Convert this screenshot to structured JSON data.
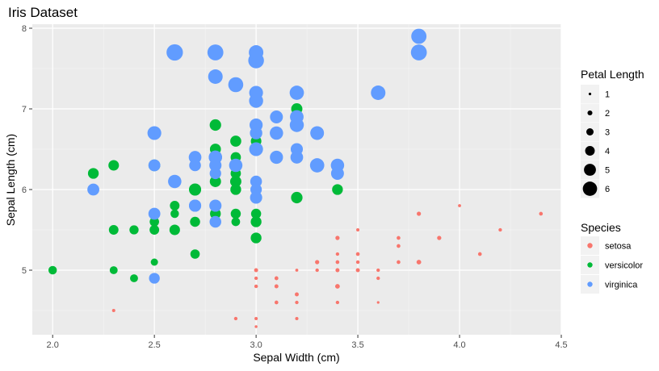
{
  "chart_data": {
    "type": "scatter",
    "title": "Iris Dataset",
    "xlabel": "Sepal Width (cm)",
    "ylabel": "Sepal Length (cm)",
    "xlim": [
      1.9,
      4.5
    ],
    "ylim": [
      4.2,
      8.05
    ],
    "xticks": [
      2.0,
      2.5,
      3.0,
      3.5,
      4.0,
      4.5
    ],
    "xtick_labels": [
      "2.0",
      "2.5",
      "3.0",
      "3.5",
      "4.0",
      "4.5"
    ],
    "yticks": [
      5,
      6,
      7,
      8
    ],
    "ytick_labels": [
      "5",
      "6",
      "7",
      "8"
    ],
    "grid": true,
    "size_legend": {
      "title": "Petal Length",
      "values": [
        1,
        2,
        3,
        4,
        5,
        6
      ],
      "labels": [
        "1",
        "2",
        "3",
        "4",
        "5",
        "6"
      ]
    },
    "color_legend": {
      "title": "Species",
      "placement": "right"
    },
    "series": [
      {
        "name": "setosa",
        "color": "#F8766D",
        "points": [
          [
            3.5,
            5.1,
            1.4
          ],
          [
            3.0,
            4.9,
            1.4
          ],
          [
            3.2,
            4.7,
            1.3
          ],
          [
            3.1,
            4.6,
            1.5
          ],
          [
            3.6,
            5.0,
            1.4
          ],
          [
            3.9,
            5.4,
            1.7
          ],
          [
            3.4,
            4.6,
            1.4
          ],
          [
            3.4,
            5.0,
            1.5
          ],
          [
            2.9,
            4.4,
            1.4
          ],
          [
            3.1,
            4.9,
            1.5
          ],
          [
            3.7,
            5.4,
            1.5
          ],
          [
            3.4,
            4.8,
            1.6
          ],
          [
            3.0,
            4.8,
            1.4
          ],
          [
            3.0,
            4.3,
            1.1
          ],
          [
            4.0,
            5.8,
            1.2
          ],
          [
            4.4,
            5.7,
            1.5
          ],
          [
            3.9,
            5.4,
            1.3
          ],
          [
            3.5,
            5.1,
            1.4
          ],
          [
            3.8,
            5.7,
            1.7
          ],
          [
            3.8,
            5.1,
            1.5
          ],
          [
            3.4,
            5.4,
            1.7
          ],
          [
            3.7,
            5.1,
            1.5
          ],
          [
            3.6,
            4.6,
            1.0
          ],
          [
            3.3,
            5.1,
            1.7
          ],
          [
            3.4,
            4.8,
            1.9
          ],
          [
            3.0,
            5.0,
            1.6
          ],
          [
            3.4,
            5.0,
            1.6
          ],
          [
            3.5,
            5.2,
            1.5
          ],
          [
            3.4,
            5.2,
            1.4
          ],
          [
            3.2,
            4.7,
            1.6
          ],
          [
            3.1,
            4.8,
            1.6
          ],
          [
            3.4,
            5.4,
            1.5
          ],
          [
            4.1,
            5.2,
            1.5
          ],
          [
            4.2,
            5.5,
            1.4
          ],
          [
            3.1,
            4.9,
            1.5
          ],
          [
            3.2,
            5.0,
            1.2
          ],
          [
            3.5,
            5.5,
            1.3
          ],
          [
            3.6,
            4.9,
            1.4
          ],
          [
            3.0,
            4.4,
            1.3
          ],
          [
            3.4,
            5.1,
            1.5
          ],
          [
            3.5,
            5.0,
            1.3
          ],
          [
            2.3,
            4.5,
            1.3
          ],
          [
            3.2,
            4.4,
            1.3
          ],
          [
            3.5,
            5.0,
            1.6
          ],
          [
            3.8,
            5.1,
            1.9
          ],
          [
            3.0,
            4.8,
            1.4
          ],
          [
            3.8,
            5.1,
            1.6
          ],
          [
            3.2,
            4.6,
            1.4
          ],
          [
            3.7,
            5.3,
            1.5
          ],
          [
            3.3,
            5.0,
            1.4
          ]
        ]
      },
      {
        "name": "versicolor",
        "color": "#00BA38",
        "points": [
          [
            3.2,
            7.0,
            4.7
          ],
          [
            3.2,
            6.4,
            4.5
          ],
          [
            3.1,
            6.9,
            4.9
          ],
          [
            2.3,
            5.5,
            4.0
          ],
          [
            2.8,
            6.5,
            4.6
          ],
          [
            2.8,
            5.7,
            4.5
          ],
          [
            3.3,
            6.3,
            4.7
          ],
          [
            2.4,
            4.9,
            3.3
          ],
          [
            2.9,
            6.6,
            4.6
          ],
          [
            2.7,
            5.2,
            3.9
          ],
          [
            2.0,
            5.0,
            3.5
          ],
          [
            3.0,
            5.9,
            4.2
          ],
          [
            2.2,
            6.0,
            4.0
          ],
          [
            2.9,
            6.1,
            4.7
          ],
          [
            2.9,
            5.6,
            3.6
          ],
          [
            3.1,
            6.7,
            4.4
          ],
          [
            3.0,
            5.6,
            4.5
          ],
          [
            2.7,
            5.8,
            4.1
          ],
          [
            2.2,
            6.2,
            4.5
          ],
          [
            2.5,
            5.6,
            3.9
          ],
          [
            3.2,
            5.9,
            4.8
          ],
          [
            2.8,
            6.1,
            4.0
          ],
          [
            2.5,
            6.3,
            4.9
          ],
          [
            2.8,
            6.1,
            4.7
          ],
          [
            2.9,
            6.4,
            4.3
          ],
          [
            3.0,
            6.6,
            4.4
          ],
          [
            2.8,
            6.8,
            4.8
          ],
          [
            3.0,
            6.7,
            5.0
          ],
          [
            2.9,
            6.0,
            4.5
          ],
          [
            2.6,
            5.7,
            3.5
          ],
          [
            2.4,
            5.5,
            3.8
          ],
          [
            2.4,
            5.5,
            3.7
          ],
          [
            2.7,
            5.8,
            3.9
          ],
          [
            2.7,
            6.0,
            5.1
          ],
          [
            3.0,
            5.4,
            4.5
          ],
          [
            3.4,
            6.0,
            4.5
          ],
          [
            3.1,
            6.7,
            4.7
          ],
          [
            2.3,
            6.3,
            4.4
          ],
          [
            3.0,
            5.6,
            4.1
          ],
          [
            2.5,
            5.5,
            4.0
          ],
          [
            2.6,
            5.5,
            4.4
          ],
          [
            3.0,
            6.1,
            4.6
          ],
          [
            2.6,
            5.8,
            4.0
          ],
          [
            2.3,
            5.0,
            3.3
          ],
          [
            2.7,
            5.6,
            4.2
          ],
          [
            3.0,
            5.7,
            4.2
          ],
          [
            2.9,
            5.7,
            4.2
          ],
          [
            2.9,
            6.2,
            4.3
          ],
          [
            2.5,
            5.1,
            3.0
          ],
          [
            2.8,
            5.7,
            4.1
          ]
        ]
      },
      {
        "name": "virginica",
        "color": "#619CFF",
        "points": [
          [
            3.3,
            6.3,
            6.0
          ],
          [
            2.7,
            5.8,
            5.1
          ],
          [
            3.0,
            7.1,
            5.9
          ],
          [
            2.9,
            6.3,
            5.6
          ],
          [
            3.0,
            6.5,
            5.8
          ],
          [
            3.0,
            7.6,
            6.6
          ],
          [
            2.5,
            4.9,
            4.5
          ],
          [
            2.9,
            7.3,
            6.3
          ],
          [
            2.5,
            6.7,
            5.8
          ],
          [
            3.6,
            7.2,
            6.1
          ],
          [
            3.2,
            6.5,
            5.1
          ],
          [
            2.7,
            6.4,
            5.3
          ],
          [
            3.0,
            6.8,
            5.5
          ],
          [
            2.5,
            5.7,
            5.0
          ],
          [
            2.8,
            5.8,
            5.1
          ],
          [
            3.2,
            6.4,
            5.3
          ],
          [
            3.0,
            6.5,
            5.5
          ],
          [
            3.8,
            7.7,
            6.7
          ],
          [
            2.6,
            7.7,
            6.9
          ],
          [
            2.2,
            6.0,
            5.0
          ],
          [
            3.2,
            6.9,
            5.7
          ],
          [
            2.8,
            5.6,
            4.9
          ],
          [
            2.8,
            7.7,
            6.7
          ],
          [
            2.7,
            6.3,
            4.9
          ],
          [
            3.3,
            6.7,
            5.7
          ],
          [
            3.2,
            7.2,
            6.0
          ],
          [
            2.8,
            6.2,
            4.8
          ],
          [
            3.0,
            6.1,
            4.9
          ],
          [
            2.8,
            6.4,
            5.6
          ],
          [
            3.0,
            7.2,
            5.8
          ],
          [
            2.8,
            7.4,
            6.1
          ],
          [
            3.8,
            7.9,
            6.4
          ],
          [
            2.8,
            6.4,
            5.6
          ],
          [
            2.8,
            6.3,
            5.1
          ],
          [
            2.6,
            6.1,
            5.6
          ],
          [
            3.0,
            7.7,
            6.1
          ],
          [
            3.4,
            6.3,
            5.6
          ],
          [
            3.1,
            6.4,
            5.5
          ],
          [
            3.0,
            6.0,
            4.8
          ],
          [
            3.1,
            6.9,
            5.4
          ],
          [
            3.1,
            6.7,
            5.6
          ],
          [
            3.1,
            6.9,
            5.1
          ],
          [
            2.7,
            5.8,
            5.1
          ],
          [
            3.2,
            6.8,
            5.9
          ],
          [
            3.3,
            6.7,
            5.7
          ],
          [
            3.0,
            6.7,
            5.2
          ],
          [
            2.5,
            6.3,
            5.0
          ],
          [
            3.0,
            6.5,
            5.2
          ],
          [
            3.4,
            6.2,
            5.4
          ],
          [
            3.0,
            5.9,
            5.1
          ]
        ]
      }
    ]
  }
}
